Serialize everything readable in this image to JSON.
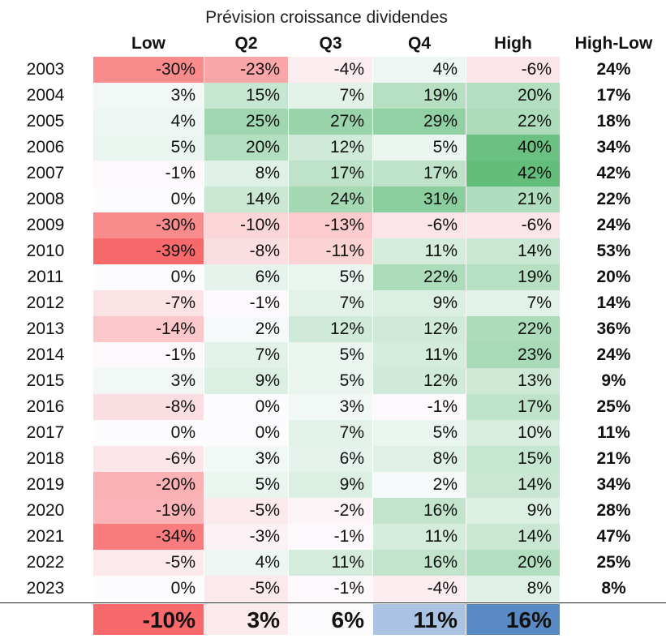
{
  "chart_data": {
    "type": "table",
    "title": "Prévision croissance dividendes",
    "columns": [
      "Low",
      "Q2",
      "Q3",
      "Q4",
      "High",
      "High-Low"
    ],
    "rows": [
      {
        "year": "2003",
        "values": [
          "-30%",
          "-23%",
          "-4%",
          "4%",
          "-6%"
        ],
        "high_low": "24%"
      },
      {
        "year": "2004",
        "values": [
          "3%",
          "15%",
          "7%",
          "19%",
          "20%"
        ],
        "high_low": "17%"
      },
      {
        "year": "2005",
        "values": [
          "4%",
          "25%",
          "27%",
          "29%",
          "22%"
        ],
        "high_low": "18%"
      },
      {
        "year": "2006",
        "values": [
          "5%",
          "20%",
          "12%",
          "5%",
          "40%"
        ],
        "high_low": "34%"
      },
      {
        "year": "2007",
        "values": [
          "-1%",
          "8%",
          "17%",
          "17%",
          "42%"
        ],
        "high_low": "42%"
      },
      {
        "year": "2008",
        "values": [
          "0%",
          "14%",
          "24%",
          "31%",
          "21%"
        ],
        "high_low": "22%"
      },
      {
        "year": "2009",
        "values": [
          "-30%",
          "-10%",
          "-13%",
          "-6%",
          "-6%"
        ],
        "high_low": "24%"
      },
      {
        "year": "2010",
        "values": [
          "-39%",
          "-8%",
          "-11%",
          "11%",
          "14%"
        ],
        "high_low": "53%"
      },
      {
        "year": "2011",
        "values": [
          "0%",
          "6%",
          "5%",
          "22%",
          "19%"
        ],
        "high_low": "20%"
      },
      {
        "year": "2012",
        "values": [
          "-7%",
          "-1%",
          "7%",
          "9%",
          "7%"
        ],
        "high_low": "14%"
      },
      {
        "year": "2013",
        "values": [
          "-14%",
          "2%",
          "12%",
          "12%",
          "22%"
        ],
        "high_low": "36%"
      },
      {
        "year": "2014",
        "values": [
          "-1%",
          "7%",
          "5%",
          "11%",
          "23%"
        ],
        "high_low": "24%"
      },
      {
        "year": "2015",
        "values": [
          "3%",
          "9%",
          "5%",
          "12%",
          "13%"
        ],
        "high_low": "9%"
      },
      {
        "year": "2016",
        "values": [
          "-8%",
          "0%",
          "3%",
          "-1%",
          "17%"
        ],
        "high_low": "25%"
      },
      {
        "year": "2017",
        "values": [
          "0%",
          "0%",
          "7%",
          "5%",
          "10%"
        ],
        "high_low": "11%"
      },
      {
        "year": "2018",
        "values": [
          "-6%",
          "3%",
          "6%",
          "8%",
          "15%"
        ],
        "high_low": "21%"
      },
      {
        "year": "2019",
        "values": [
          "-20%",
          "5%",
          "9%",
          "2%",
          "14%"
        ],
        "high_low": "34%"
      },
      {
        "year": "2020",
        "values": [
          "-19%",
          "-5%",
          "-2%",
          "16%",
          "9%"
        ],
        "high_low": "28%"
      },
      {
        "year": "2021",
        "values": [
          "-34%",
          "-3%",
          "-1%",
          "11%",
          "14%"
        ],
        "high_low": "47%"
      },
      {
        "year": "2022",
        "values": [
          "-5%",
          "4%",
          "11%",
          "16%",
          "20%"
        ],
        "high_low": "25%"
      },
      {
        "year": "2023",
        "values": [
          "0%",
          "-5%",
          "-1%",
          "-4%",
          "8%"
        ],
        "high_low": "8%"
      }
    ],
    "averages": [
      "-10%",
      "3%",
      "6%",
      "11%",
      "16%"
    ],
    "colors": {
      "negative": "#f8696b",
      "positive": "#63be7b",
      "neutral": "#fcfcff",
      "average_high": "#5a8ac6"
    }
  }
}
